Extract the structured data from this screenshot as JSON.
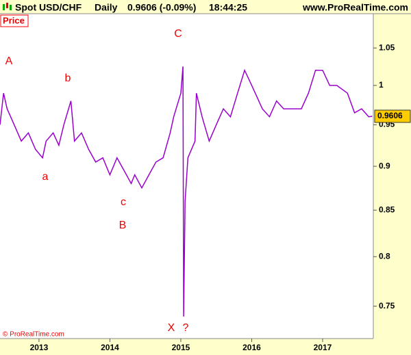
{
  "header": {
    "symbol": "Spot USD/CHF",
    "period": "Daily",
    "quote": "0.9606 (-0.09%)",
    "time": "18:44:25",
    "site": "www.ProRealTime.com"
  },
  "panel_label": "Price",
  "copyright": "© ProRealTime.com",
  "chart_data": {
    "type": "line",
    "log_scale": true,
    "grid": false,
    "x": [
      2012.45,
      2012.5,
      2012.55,
      2012.65,
      2012.75,
      2012.85,
      2012.95,
      2013.05,
      2013.1,
      2013.2,
      2013.28,
      2013.35,
      2013.45,
      2013.5,
      2013.6,
      2013.7,
      2013.8,
      2013.9,
      2014.0,
      2014.1,
      2014.2,
      2014.3,
      2014.35,
      2014.45,
      2014.55,
      2014.65,
      2014.75,
      2014.85,
      2014.9,
      2015.0,
      2015.03,
      2015.04,
      2015.06,
      2015.1,
      2015.2,
      2015.22,
      2015.3,
      2015.4,
      2015.5,
      2015.6,
      2015.7,
      2015.8,
      2015.9,
      2016.0,
      2016.1,
      2016.15,
      2016.25,
      2016.35,
      2016.45,
      2016.55,
      2016.7,
      2016.8,
      2016.9,
      2017.0,
      2017.1,
      2017.2,
      2017.35,
      2017.45,
      2017.55,
      2017.65,
      2017.7
    ],
    "series": [
      {
        "name": "Spot USD/CHF",
        "color": "#9900cc",
        "values": [
          0.95,
          0.99,
          0.97,
          0.95,
          0.93,
          0.94,
          0.92,
          0.91,
          0.93,
          0.94,
          0.925,
          0.95,
          0.98,
          0.93,
          0.94,
          0.92,
          0.905,
          0.91,
          0.89,
          0.91,
          0.895,
          0.88,
          0.89,
          0.875,
          0.89,
          0.905,
          0.91,
          0.94,
          0.96,
          0.99,
          1.025,
          0.74,
          0.86,
          0.91,
          0.93,
          0.99,
          0.96,
          0.93,
          0.95,
          0.97,
          0.96,
          0.99,
          1.02,
          1.0,
          0.98,
          0.97,
          0.96,
          0.98,
          0.97,
          0.97,
          0.97,
          0.99,
          1.02,
          1.02,
          1.0,
          1.0,
          0.99,
          0.965,
          0.97,
          0.96,
          0.9606
        ]
      }
    ],
    "xlim": [
      2012.45,
      2017.715
    ],
    "xticks": [
      2013,
      2014,
      2015,
      2016,
      2017
    ],
    "ylim": [
      0.719,
      1.098
    ],
    "yticks": [
      0.75,
      0.8,
      0.85,
      0.9,
      0.95,
      1,
      1.05
    ],
    "price_tag": "0.9606",
    "annotations": [
      "A",
      "b",
      "a",
      "c",
      "B",
      "C",
      "X",
      "?"
    ]
  }
}
